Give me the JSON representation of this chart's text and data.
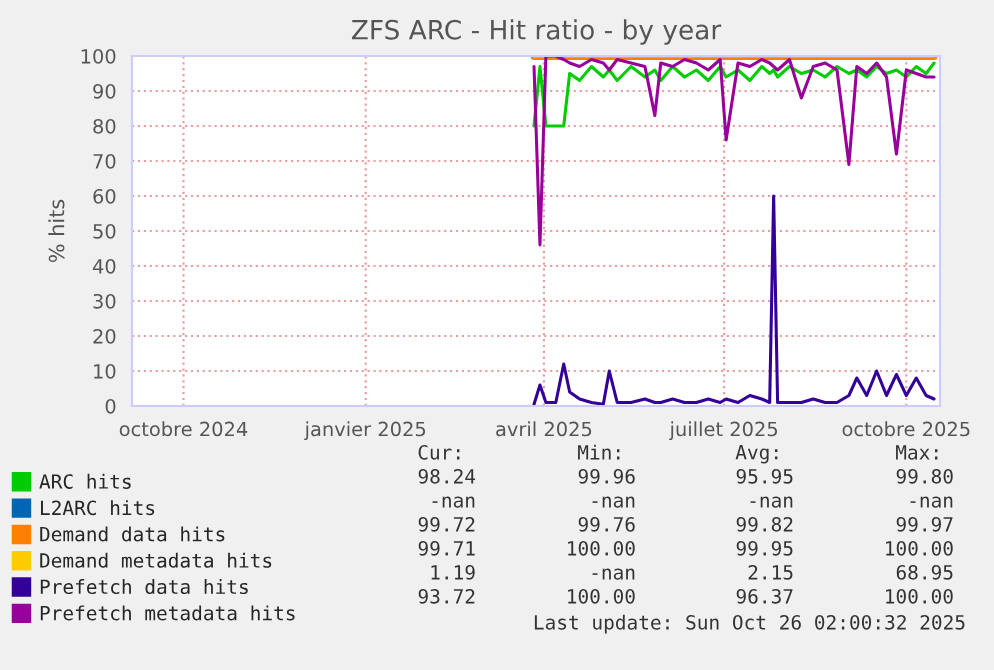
{
  "chart_data": {
    "type": "line",
    "title": "ZFS ARC - Hit ratio - by year",
    "ylabel": "% hits",
    "x": [
      "2025-03-27",
      "2025-03-30",
      "2025-04-02",
      "2025-04-07",
      "2025-04-11",
      "2025-04-14",
      "2025-04-19",
      "2025-04-25",
      "2025-05-01",
      "2025-05-04",
      "2025-05-08",
      "2025-05-15",
      "2025-05-22",
      "2025-05-27",
      "2025-05-30",
      "2025-06-05",
      "2025-06-11",
      "2025-06-17",
      "2025-06-23",
      "2025-06-29",
      "2025-07-02",
      "2025-07-08",
      "2025-07-14",
      "2025-07-20",
      "2025-07-24",
      "2025-07-26",
      "2025-07-28",
      "2025-08-03",
      "2025-08-09",
      "2025-08-15",
      "2025-08-21",
      "2025-08-27",
      "2025-09-02",
      "2025-09-06",
      "2025-09-11",
      "2025-09-16",
      "2025-09-21",
      "2025-09-26",
      "2025-10-01",
      "2025-10-06",
      "2025-10-11",
      "2025-10-15"
    ],
    "series": [
      {
        "name": "ARC hits",
        "color": "#00cc00",
        "values": [
          80,
          97,
          80,
          80,
          80,
          95,
          93,
          97,
          94,
          96,
          93,
          97,
          94,
          96,
          93,
          97,
          94,
          96,
          93,
          97,
          94,
          96,
          93,
          97,
          95,
          96,
          94,
          97,
          95,
          96,
          94,
          97,
          95,
          96,
          94,
          97,
          95,
          96,
          94,
          97,
          95,
          98
        ]
      },
      {
        "name": "L2ARC hits",
        "color": "#0066b3",
        "values": [
          null,
          null,
          null,
          null,
          null,
          null,
          null,
          null,
          null,
          null,
          null,
          null,
          null,
          null,
          null,
          null,
          null,
          null,
          null,
          null,
          null,
          null,
          null,
          null,
          null,
          null,
          null,
          null,
          null,
          null,
          null,
          null,
          null,
          null,
          null,
          null,
          null,
          null,
          null,
          null,
          null,
          null
        ]
      },
      {
        "name": "Demand data hits",
        "color": "#ff8000",
        "values": [
          99.8,
          99.8,
          99.8,
          99.8,
          99.8,
          99.8,
          99.8,
          99.8,
          99.8,
          99.8,
          99.8,
          99.8,
          99.8,
          99.8,
          99.8,
          99.8,
          99.8,
          99.8,
          99.8,
          99.8,
          99.8,
          99.8,
          99.8,
          99.8,
          99.8,
          99.8,
          99.8,
          99.8,
          99.8,
          99.8,
          99.8,
          99.8,
          99.8,
          99.8,
          99.8,
          99.8,
          99.8,
          99.8,
          99.8,
          99.8,
          99.8,
          99.8
        ]
      },
      {
        "name": "Demand metadata hits",
        "color": "#ffcc00",
        "values": [
          100,
          100,
          100,
          100,
          100,
          100,
          100,
          100,
          100,
          100,
          100,
          100,
          100,
          100,
          100,
          100,
          100,
          100,
          100,
          100,
          100,
          100,
          100,
          100,
          100,
          100,
          100,
          100,
          100,
          100,
          100,
          100,
          100,
          100,
          100,
          100,
          100,
          100,
          100,
          100,
          100,
          100
        ]
      },
      {
        "name": "Prefetch data hits",
        "color": "#330099",
        "values": [
          0.5,
          6,
          1,
          1,
          12,
          4,
          2,
          1,
          0.5,
          10,
          1,
          1,
          2,
          1,
          1,
          2,
          1,
          1,
          2,
          1,
          2,
          1,
          3,
          2,
          1,
          60,
          1,
          1,
          1,
          2,
          1,
          1,
          3,
          8,
          3,
          10,
          3,
          9,
          3,
          8,
          3,
          2
        ]
      },
      {
        "name": "Prefetch metadata hits",
        "color": "#990099",
        "values": [
          97,
          46,
          100,
          100,
          99,
          98,
          97,
          99,
          98,
          96,
          99,
          98,
          97,
          83,
          98,
          97,
          99,
          98,
          96,
          99,
          76,
          98,
          97,
          99,
          98,
          97,
          96,
          99,
          88,
          97,
          98,
          96,
          69,
          97,
          95,
          98,
          94,
          72,
          96,
          95,
          94,
          94
        ]
      }
    ],
    "xlim": [
      "2024-09-05",
      "2025-10-18"
    ],
    "xticks": [
      {
        "value": "2024-10-01",
        "label": "octobre 2024"
      },
      {
        "value": "2025-01-01",
        "label": "janvier 2025"
      },
      {
        "value": "2025-04-01",
        "label": "avril 2025"
      },
      {
        "value": "2025-07-01",
        "label": "juillet 2025"
      },
      {
        "value": "2025-10-01",
        "label": "octobre 2025"
      }
    ],
    "ylim": [
      0,
      100
    ],
    "yticks": [
      0,
      10,
      20,
      30,
      40,
      50,
      60,
      70,
      80,
      90,
      100
    ],
    "grid": true,
    "legend": "bottom left",
    "marker": "none",
    "line_style": "solid",
    "annotations": [
      "Cur:",
      "Min:",
      "Avg:",
      "Max:",
      "98.24",
      "99.96",
      "95.95",
      "99.80",
      "-nan",
      "-nan",
      "-nan",
      "-nan",
      "99.72",
      "99.76",
      "99.82",
      "99.97",
      "99.71",
      "100.00",
      "99.95",
      "100.00",
      "1.19",
      "-nan",
      "2.15",
      "68.95",
      "93.72",
      "100.00",
      "96.37",
      "100.00",
      "Last update: Sun Oct 26 02:00:32 2025"
    ]
  }
}
